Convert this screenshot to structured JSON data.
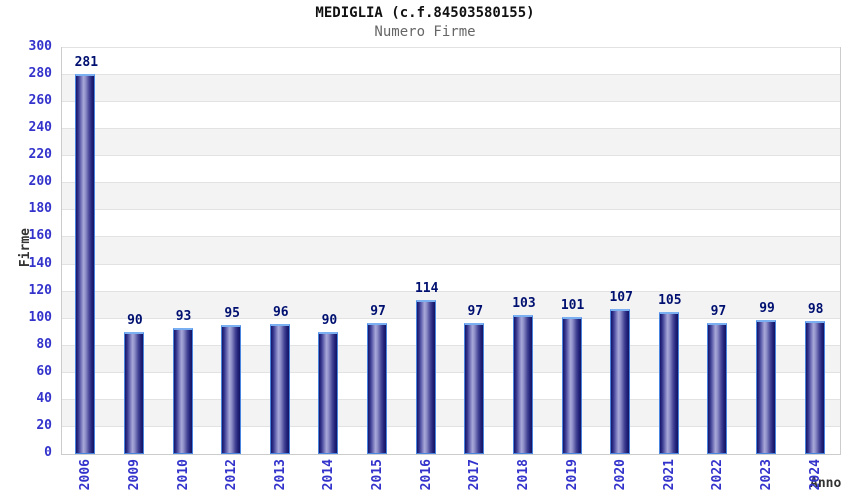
{
  "chart_data": {
    "type": "bar",
    "title": "MEDIGLIA (c.f.84503580155)",
    "subtitle": "Numero Firme",
    "xlabel": "Anno",
    "ylabel": "Firme",
    "categories": [
      "2006",
      "2009",
      "2010",
      "2012",
      "2013",
      "2014",
      "2015",
      "2016",
      "2017",
      "2018",
      "2019",
      "2020",
      "2021",
      "2022",
      "2023",
      "2024"
    ],
    "values": [
      281,
      90,
      93,
      95,
      96,
      90,
      97,
      114,
      97,
      103,
      101,
      107,
      105,
      97,
      99,
      98
    ],
    "ylim": [
      0,
      300
    ],
    "ytick_step": 20,
    "yticks": [
      0,
      20,
      40,
      60,
      80,
      100,
      120,
      140,
      160,
      180,
      200,
      220,
      240,
      260,
      280,
      300
    ],
    "grid": true,
    "legend": null,
    "colors": {
      "tick_label": "#3333cc",
      "value_label": "#001070",
      "title_text": "#111111",
      "subtitle_text": "#666666",
      "axis_title_text": "#333333",
      "bar_edge_dark": "#16166a",
      "bar_center_light": "#a9a9da",
      "bar_border": "#4a85e0",
      "bar_border_top": "#7ab0f2",
      "band_gray": "#f3f3f3",
      "grid_line": "#e2e2e2",
      "plot_border": "#cccccc",
      "background": "#ffffff"
    }
  }
}
